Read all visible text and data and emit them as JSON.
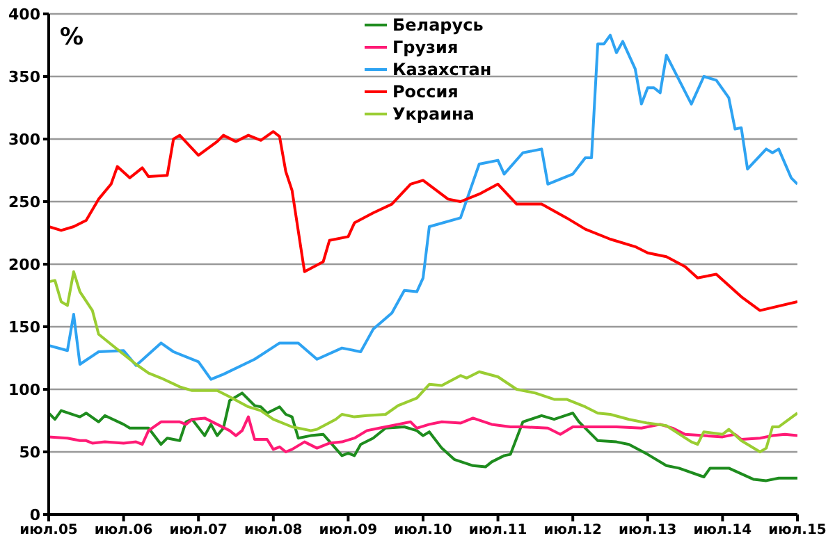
{
  "chart_data": {
    "type": "line",
    "ylabel": "%",
    "xlim": [
      "2005-07",
      "2015-07"
    ],
    "ylim": [
      0,
      400
    ],
    "yticks": [
      0,
      50,
      100,
      150,
      200,
      250,
      300,
      350,
      400
    ],
    "xticks": [
      {
        "value": "2005-07",
        "label": "июл.05"
      },
      {
        "value": "2006-07",
        "label": "июл.06"
      },
      {
        "value": "2007-07",
        "label": "июл.07"
      },
      {
        "value": "2008-07",
        "label": "июл.08"
      },
      {
        "value": "2009-07",
        "label": "июл.09"
      },
      {
        "value": "2010-07",
        "label": "июл.10"
      },
      {
        "value": "2011-07",
        "label": "июл.11"
      },
      {
        "value": "2012-07",
        "label": "июл.12"
      },
      {
        "value": "2013-07",
        "label": "июл.13"
      },
      {
        "value": "2014-07",
        "label": "июл.14"
      },
      {
        "value": "2015-07",
        "label": "июл.15"
      }
    ],
    "grid": "y",
    "legend": "top",
    "marker": "none",
    "line_style": "solid",
    "series": [
      {
        "name": "Беларусь",
        "color": "#1e8c1e",
        "x": [
          "2005-07",
          "2005-08",
          "2005-09",
          "2005-12",
          "2006-01",
          "2006-03",
          "2006-04",
          "2006-07",
          "2006-08",
          "2006-11",
          "2007-01",
          "2007-02",
          "2007-03",
          "2007-04",
          "2007-05",
          "2007-06",
          "2007-08",
          "2007-09",
          "2007-10",
          "2007-11",
          "2007-12",
          "2008-02",
          "2008-04",
          "2008-05",
          "2008-06",
          "2008-08",
          "2008-09",
          "2008-10",
          "2008-11",
          "2009-01",
          "2009-03",
          "2009-06",
          "2009-07",
          "2009-08",
          "2009-09",
          "2009-11",
          "2010-01",
          "2010-04",
          "2010-06",
          "2010-07",
          "2010-08",
          "2010-10",
          "2010-12",
          "2011-03",
          "2011-05",
          "2011-06",
          "2011-08",
          "2011-09",
          "2011-11",
          "2012-02",
          "2012-04",
          "2012-07",
          "2012-08",
          "2012-10",
          "2012-11",
          "2013-02",
          "2013-04",
          "2013-07",
          "2013-10",
          "2013-12",
          "2014-04",
          "2014-05",
          "2014-08",
          "2014-12",
          "2015-02",
          "2015-04",
          "2015-07"
        ],
        "values": [
          81,
          76,
          83,
          78,
          81,
          74,
          79,
          72,
          69,
          69,
          56,
          61,
          60,
          59,
          74,
          76,
          63,
          72,
          63,
          69,
          91,
          97,
          87,
          86,
          81,
          86,
          80,
          78,
          61,
          63,
          64,
          47,
          49,
          47,
          56,
          61,
          69,
          70,
          67,
          63,
          66,
          53,
          44,
          39,
          38,
          42,
          47,
          48,
          74,
          79,
          76,
          81,
          74,
          64,
          59,
          58,
          56,
          48,
          39,
          37,
          30,
          37,
          37,
          28,
          27,
          29,
          29
        ]
      },
      {
        "name": "Грузия",
        "color": "#ff1a75",
        "x": [
          "2005-07",
          "2005-10",
          "2005-12",
          "2006-01",
          "2006-02",
          "2006-04",
          "2006-07",
          "2006-09",
          "2006-10",
          "2006-11",
          "2007-01",
          "2007-04",
          "2007-05",
          "2007-06",
          "2007-08",
          "2007-10",
          "2007-12",
          "2008-01",
          "2008-02",
          "2008-03",
          "2008-04",
          "2008-06",
          "2008-07",
          "2008-08",
          "2008-09",
          "2008-10",
          "2008-12",
          "2009-02",
          "2009-04",
          "2009-06",
          "2009-08",
          "2009-10",
          "2009-12",
          "2010-03",
          "2010-05",
          "2010-06",
          "2010-08",
          "2010-10",
          "2011-01",
          "2011-03",
          "2011-06",
          "2011-09",
          "2011-11",
          "2012-03",
          "2012-05",
          "2012-07",
          "2012-10",
          "2013-02",
          "2013-06",
          "2013-09",
          "2013-11",
          "2014-01",
          "2014-04",
          "2014-07",
          "2014-09",
          "2014-10",
          "2015-01",
          "2015-03",
          "2015-05",
          "2015-07"
        ],
        "values": [
          62,
          61,
          59,
          59,
          57,
          58,
          57,
          58,
          56,
          67,
          74,
          74,
          72,
          76,
          77,
          72,
          67,
          63,
          67,
          78,
          60,
          60,
          52,
          54,
          50,
          52,
          58,
          53,
          57,
          58,
          61,
          67,
          69,
          72,
          74,
          69,
          72,
          74,
          73,
          77,
          72,
          70,
          70,
          69,
          64,
          70,
          70,
          70,
          69,
          72,
          69,
          64,
          63,
          62,
          64,
          60,
          61,
          63,
          64,
          63
        ]
      },
      {
        "name": "Казахстан",
        "color": "#2ea3f2",
        "x": [
          "2005-07",
          "2005-10",
          "2005-11",
          "2005-12",
          "2006-03",
          "2006-07",
          "2006-09",
          "2007-01",
          "2007-03",
          "2007-07",
          "2007-09",
          "2007-11",
          "2008-04",
          "2008-08",
          "2008-11",
          "2009-02",
          "2009-06",
          "2009-09",
          "2009-11",
          "2010-02",
          "2010-04",
          "2010-06",
          "2010-07",
          "2010-08",
          "2011-01",
          "2011-04",
          "2011-07",
          "2011-08",
          "2011-11",
          "2012-02",
          "2012-03",
          "2012-07",
          "2012-09",
          "2012-10",
          "2012-11",
          "2012-12",
          "2013-01",
          "2013-02",
          "2013-03",
          "2013-05",
          "2013-06",
          "2013-07",
          "2013-08",
          "2013-09",
          "2013-10",
          "2014-02",
          "2014-04",
          "2014-06",
          "2014-08",
          "2014-09",
          "2014-10",
          "2014-11",
          "2015-02",
          "2015-03",
          "2015-04",
          "2015-06",
          "2015-07"
        ],
        "values": [
          135,
          131,
          160,
          120,
          130,
          131,
          119,
          137,
          130,
          122,
          108,
          112,
          124,
          137,
          137,
          124,
          133,
          130,
          148,
          161,
          179,
          178,
          189,
          230,
          237,
          280,
          283,
          272,
          289,
          292,
          264,
          272,
          285,
          285,
          376,
          376,
          383,
          369,
          378,
          356,
          328,
          341,
          341,
          337,
          367,
          328,
          350,
          347,
          333,
          308,
          309,
          276,
          292,
          289,
          292,
          269,
          264
        ]
      },
      {
        "name": "Россия",
        "color": "#ff0000",
        "x": [
          "2005-07",
          "2005-09",
          "2005-11",
          "2006-01",
          "2006-03",
          "2006-05",
          "2006-06",
          "2006-08",
          "2006-10",
          "2006-11",
          "2007-02",
          "2007-03",
          "2007-04",
          "2007-07",
          "2007-10",
          "2007-11",
          "2008-01",
          "2008-03",
          "2008-05",
          "2008-07",
          "2008-08",
          "2008-09",
          "2008-10",
          "2008-12",
          "2009-03",
          "2009-04",
          "2009-07",
          "2009-08",
          "2009-11",
          "2010-02",
          "2010-05",
          "2010-07",
          "2010-11",
          "2011-01",
          "2011-04",
          "2011-07",
          "2011-10",
          "2012-02",
          "2012-06",
          "2012-09",
          "2013-01",
          "2013-05",
          "2013-07",
          "2013-10",
          "2014-01",
          "2014-03",
          "2014-06",
          "2014-10",
          "2015-01",
          "2015-07"
        ],
        "values": [
          230,
          227,
          230,
          235,
          252,
          264,
          278,
          269,
          277,
          270,
          271,
          300,
          303,
          287,
          298,
          303,
          298,
          303,
          299,
          306,
          302,
          274,
          259,
          194,
          202,
          219,
          222,
          233,
          241,
          248,
          264,
          267,
          252,
          250,
          256,
          264,
          248,
          248,
          237,
          228,
          220,
          214,
          209,
          206,
          198,
          189,
          192,
          174,
          163,
          170
        ]
      },
      {
        "name": "Украина",
        "color": "#9acd32",
        "x": [
          "2005-07",
          "2005-08",
          "2005-09",
          "2005-10",
          "2005-11",
          "2005-12",
          "2006-02",
          "2006-03",
          "2006-05",
          "2006-09",
          "2006-11",
          "2007-01",
          "2007-04",
          "2007-06",
          "2007-10",
          "2007-12",
          "2008-03",
          "2008-05",
          "2008-07",
          "2008-10",
          "2009-01",
          "2009-02",
          "2009-05",
          "2009-06",
          "2009-08",
          "2009-10",
          "2010-01",
          "2010-03",
          "2010-06",
          "2010-08",
          "2010-10",
          "2011-01",
          "2011-02",
          "2011-04",
          "2011-07",
          "2011-10",
          "2012-01",
          "2012-04",
          "2012-06",
          "2012-09",
          "2012-11",
          "2013-01",
          "2013-04",
          "2013-07",
          "2013-10",
          "2014-02",
          "2014-03",
          "2014-04",
          "2014-07",
          "2014-08",
          "2014-10",
          "2015-01",
          "2015-02",
          "2015-03",
          "2015-04",
          "2015-07"
        ],
        "values": [
          186,
          187,
          170,
          167,
          194,
          178,
          163,
          144,
          136,
          120,
          113,
          109,
          102,
          99,
          99,
          94,
          86,
          83,
          76,
          70,
          67,
          68,
          76,
          80,
          78,
          79,
          80,
          87,
          93,
          104,
          103,
          111,
          109,
          114,
          110,
          100,
          97,
          92,
          92,
          86,
          81,
          80,
          76,
          73,
          71,
          58,
          56,
          66,
          64,
          68,
          59,
          50,
          53,
          70,
          70,
          81
        ]
      }
    ]
  }
}
